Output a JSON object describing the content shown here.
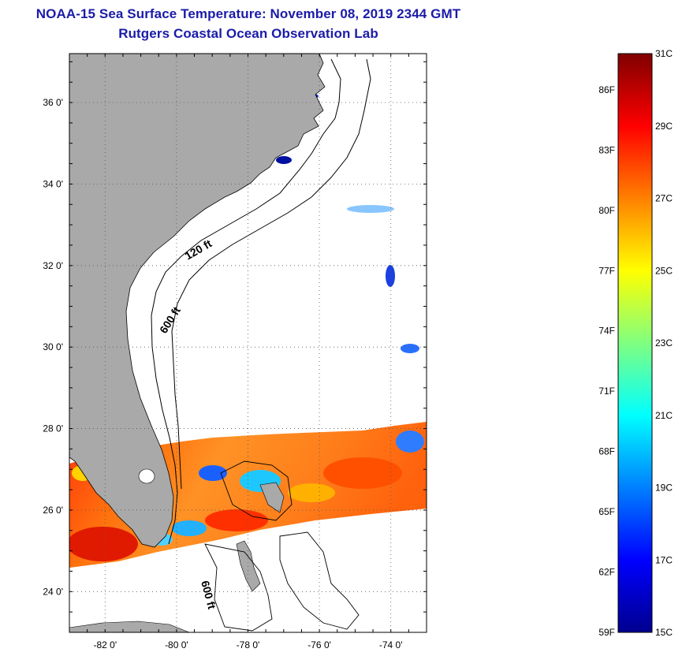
{
  "title": {
    "line1": "NOAA-15 Sea Surface Temperature:  November 08, 2019 2344 GMT",
    "line2": "Rutgers Coastal Ocean Observation Lab"
  },
  "map": {
    "lon_range": [
      -83,
      -73
    ],
    "lat_range": [
      23,
      37.2
    ],
    "x_ticks": [
      {
        "lon": -82,
        "label": "-82 0'"
      },
      {
        "lon": -80,
        "label": "-80 0'"
      },
      {
        "lon": -78,
        "label": "-78 0'"
      },
      {
        "lon": -76,
        "label": "-76 0'"
      },
      {
        "lon": -74,
        "label": "-74 0'"
      }
    ],
    "y_ticks": [
      {
        "lat": 36,
        "label": "36 0'"
      },
      {
        "lat": 34,
        "label": "34 0'"
      },
      {
        "lat": 32,
        "label": "32 0'"
      },
      {
        "lat": 30,
        "label": "30 0'"
      },
      {
        "lat": 28,
        "label": "28 0'"
      },
      {
        "lat": 26,
        "label": "26 0'"
      },
      {
        "lat": 24,
        "label": "24 0'"
      }
    ],
    "grid": "dotted",
    "contour_labels": [
      {
        "text": "120 ft"
      },
      {
        "text": "600 ft"
      },
      {
        "text": "600 ft"
      }
    ],
    "land_color": "#a9a9a9",
    "ocean_color": "#ffffff"
  },
  "colorbar": {
    "celsius": [
      "31C",
      "29C",
      "27C",
      "25C",
      "23C",
      "21C",
      "19C",
      "17C",
      "15C"
    ],
    "fahrenheit": [
      "86F",
      "83F",
      "80F",
      "77F",
      "74F",
      "71F",
      "68F",
      "65F",
      "62F",
      "59F"
    ],
    "colors": [
      "#00008f",
      "#0000ff",
      "#0080ff",
      "#00ffff",
      "#80ff80",
      "#ffff00",
      "#ff8000",
      "#ff0000",
      "#800000"
    ],
    "range_c": [
      15,
      31
    ]
  }
}
